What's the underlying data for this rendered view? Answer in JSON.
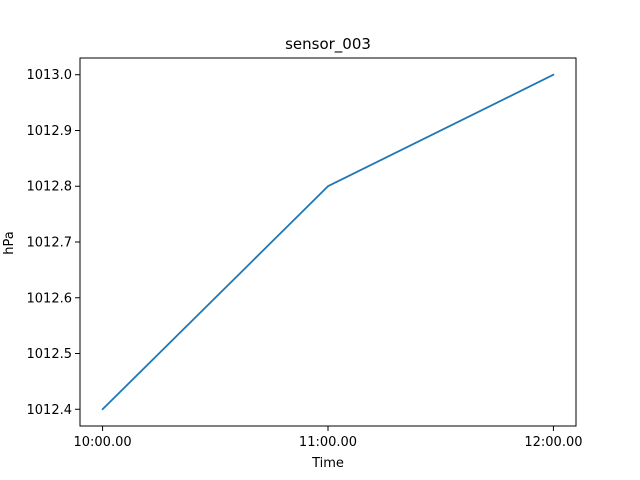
{
  "chart_data": {
    "type": "line",
    "title": "sensor_003",
    "xlabel": "Time",
    "ylabel": "hPa",
    "categories": [
      "10:00.00",
      "11:00.00",
      "12:00.00"
    ],
    "series": [
      {
        "values": [
          1012.4,
          1012.8,
          1013.0
        ],
        "color": "#1f77b4"
      }
    ],
    "ylim": [
      1012.37,
      1013.03
    ],
    "yticks": [
      1012.4,
      1012.5,
      1012.6,
      1012.7,
      1012.8,
      1012.9,
      1013.0
    ],
    "ytick_labels": [
      "1012.4",
      "1012.5",
      "1012.6",
      "1012.7",
      "1012.8",
      "1012.9",
      "1013.0"
    ],
    "grid": false,
    "legend": "none"
  }
}
